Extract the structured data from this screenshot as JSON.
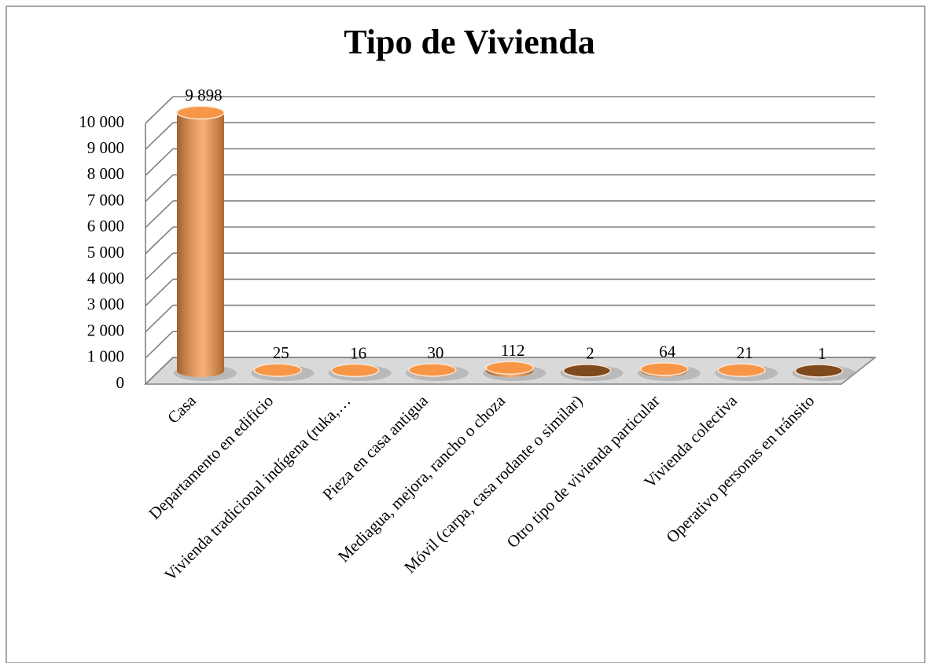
{
  "chart_data": {
    "type": "bar3d",
    "title": "Tipo de Vivienda",
    "categories": [
      "Casa",
      "Departamento en edificio",
      "Vivienda tradicional indígena (ruka,…",
      "Pieza en casa antigua",
      "Mediagua, mejora, rancho o choza",
      "Móvil (carpa, casa rodante o similar)",
      "Otro tipo de vivienda particular",
      "Vivienda colectiva",
      "Operativo personas en tránsito"
    ],
    "values": [
      9898,
      25,
      16,
      30,
      112,
      2,
      64,
      21,
      1
    ],
    "value_labels": [
      "9 898",
      "25",
      "16",
      "30",
      "112",
      "2",
      "64",
      "21",
      "1"
    ],
    "colors": [
      "#f79646",
      "#f79646",
      "#f79646",
      "#f79646",
      "#f79646",
      "#7f4a1e",
      "#f79646",
      "#f79646",
      "#7f4a1e"
    ],
    "ylim": [
      0,
      10000
    ],
    "yticks": [
      0,
      {
        "value": 1000,
        "label": "1 000"
      },
      {
        "value": 2000,
        "label": "2 000"
      },
      {
        "value": 3000,
        "label": "3 000"
      },
      {
        "value": 4000,
        "label": "4 000"
      },
      {
        "value": 5000,
        "label": "5 000"
      },
      {
        "value": 6000,
        "label": "6 000"
      },
      {
        "value": 7000,
        "label": "7 000"
      },
      {
        "value": 8000,
        "label": "8 000"
      },
      {
        "value": 9000,
        "label": "9 000"
      },
      {
        "value": 10000,
        "label": "10 000"
      }
    ],
    "grid": true
  }
}
